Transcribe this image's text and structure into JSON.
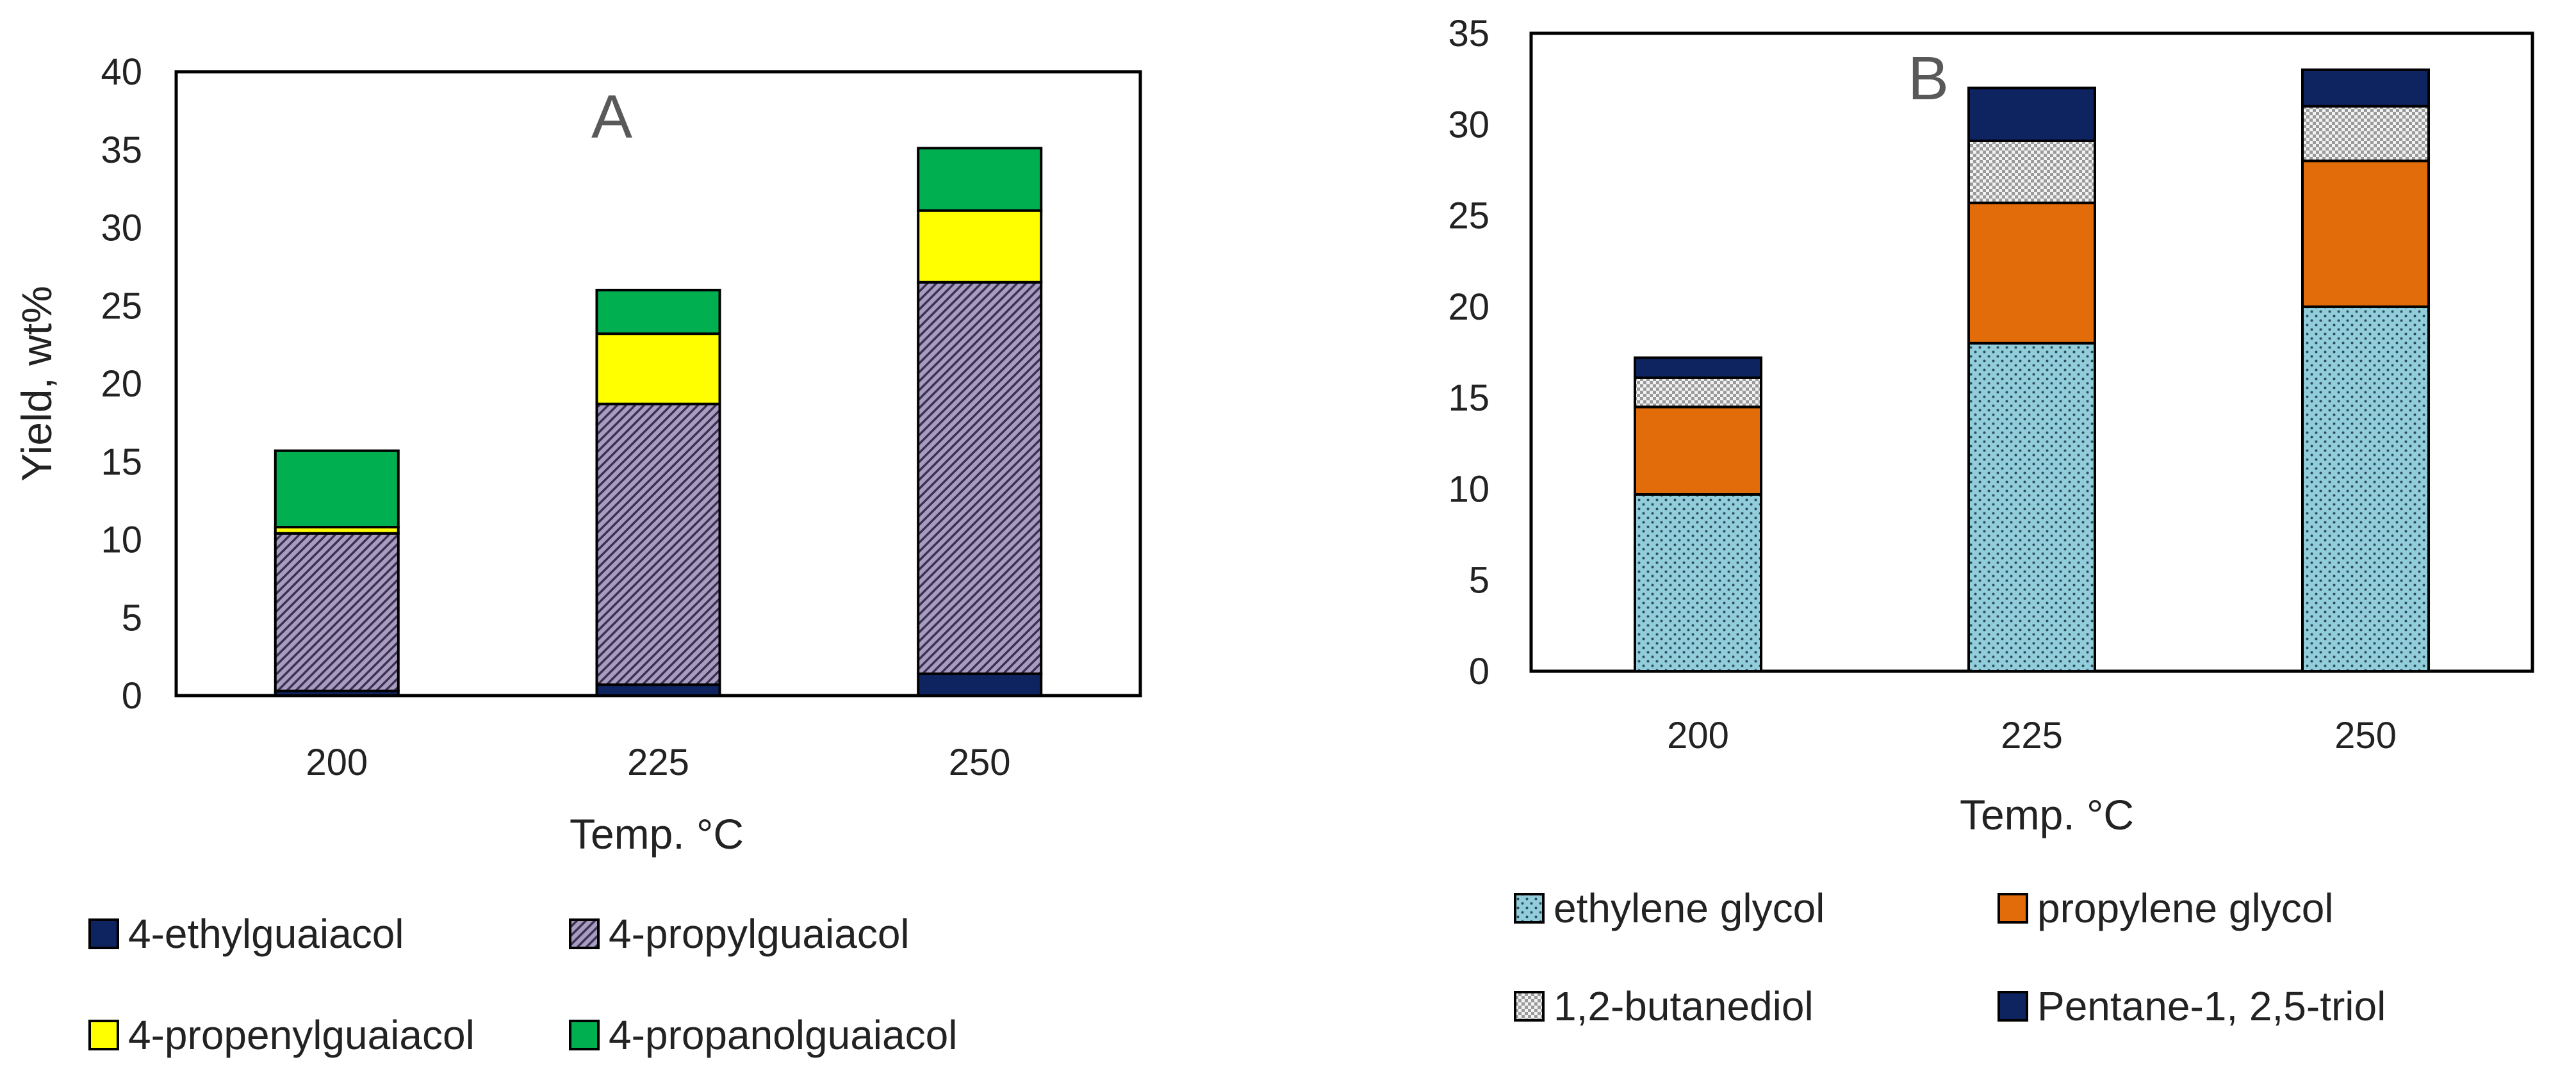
{
  "chart_data": [
    {
      "type": "bar",
      "stacked": true,
      "title": "A",
      "xlabel": "Temp. °C",
      "ylabel": "Yield, wt%",
      "categories": [
        "200",
        "225",
        "250"
      ],
      "ylim": [
        0,
        40
      ],
      "yticks": [
        "0",
        "5",
        "10",
        "15",
        "20",
        "25",
        "30",
        "35",
        "40"
      ],
      "grid": false,
      "legend_position": "bottom",
      "series": [
        {
          "name": "4-ethylguaiacol",
          "values": [
            0.3,
            0.7,
            1.4
          ],
          "color": "#0d2461",
          "pattern": "solid"
        },
        {
          "name": "4-propylguaiacol",
          "values": [
            10.1,
            18.0,
            25.1
          ],
          "color": "#a89cc0",
          "pattern": "diagonal-hatch"
        },
        {
          "name": "4-propenylguaiacol",
          "values": [
            0.4,
            4.5,
            4.6
          ],
          "color": "#ffff00",
          "pattern": "solid"
        },
        {
          "name": "4-propanolguaiacol",
          "values": [
            4.9,
            2.8,
            4.0
          ],
          "color": "#00b050",
          "pattern": "solid"
        }
      ]
    },
    {
      "type": "bar",
      "stacked": true,
      "title": "B",
      "xlabel": "Temp. °C",
      "ylabel": "",
      "categories": [
        "200",
        "225",
        "250"
      ],
      "ylim": [
        0,
        35
      ],
      "yticks": [
        "0",
        "5",
        "10",
        "15",
        "20",
        "25",
        "30",
        "35"
      ],
      "grid": false,
      "legend_position": "bottom",
      "series": [
        {
          "name": "ethylene glycol",
          "values": [
            9.7,
            18.0,
            20.0
          ],
          "color": "#92cddc",
          "pattern": "dots"
        },
        {
          "name": "propylene glycol",
          "values": [
            4.8,
            7.7,
            8.0
          ],
          "color": "#e26b0a",
          "pattern": "solid"
        },
        {
          "name": "1,2-butanediol",
          "values": [
            1.6,
            3.4,
            3.0
          ],
          "color": "#e6e6e6",
          "pattern": "checker"
        },
        {
          "name": "Pentane-1, 2,5-triol",
          "values": [
            1.1,
            2.9,
            2.0
          ],
          "color": "#0d2461",
          "pattern": "solid"
        }
      ]
    }
  ]
}
